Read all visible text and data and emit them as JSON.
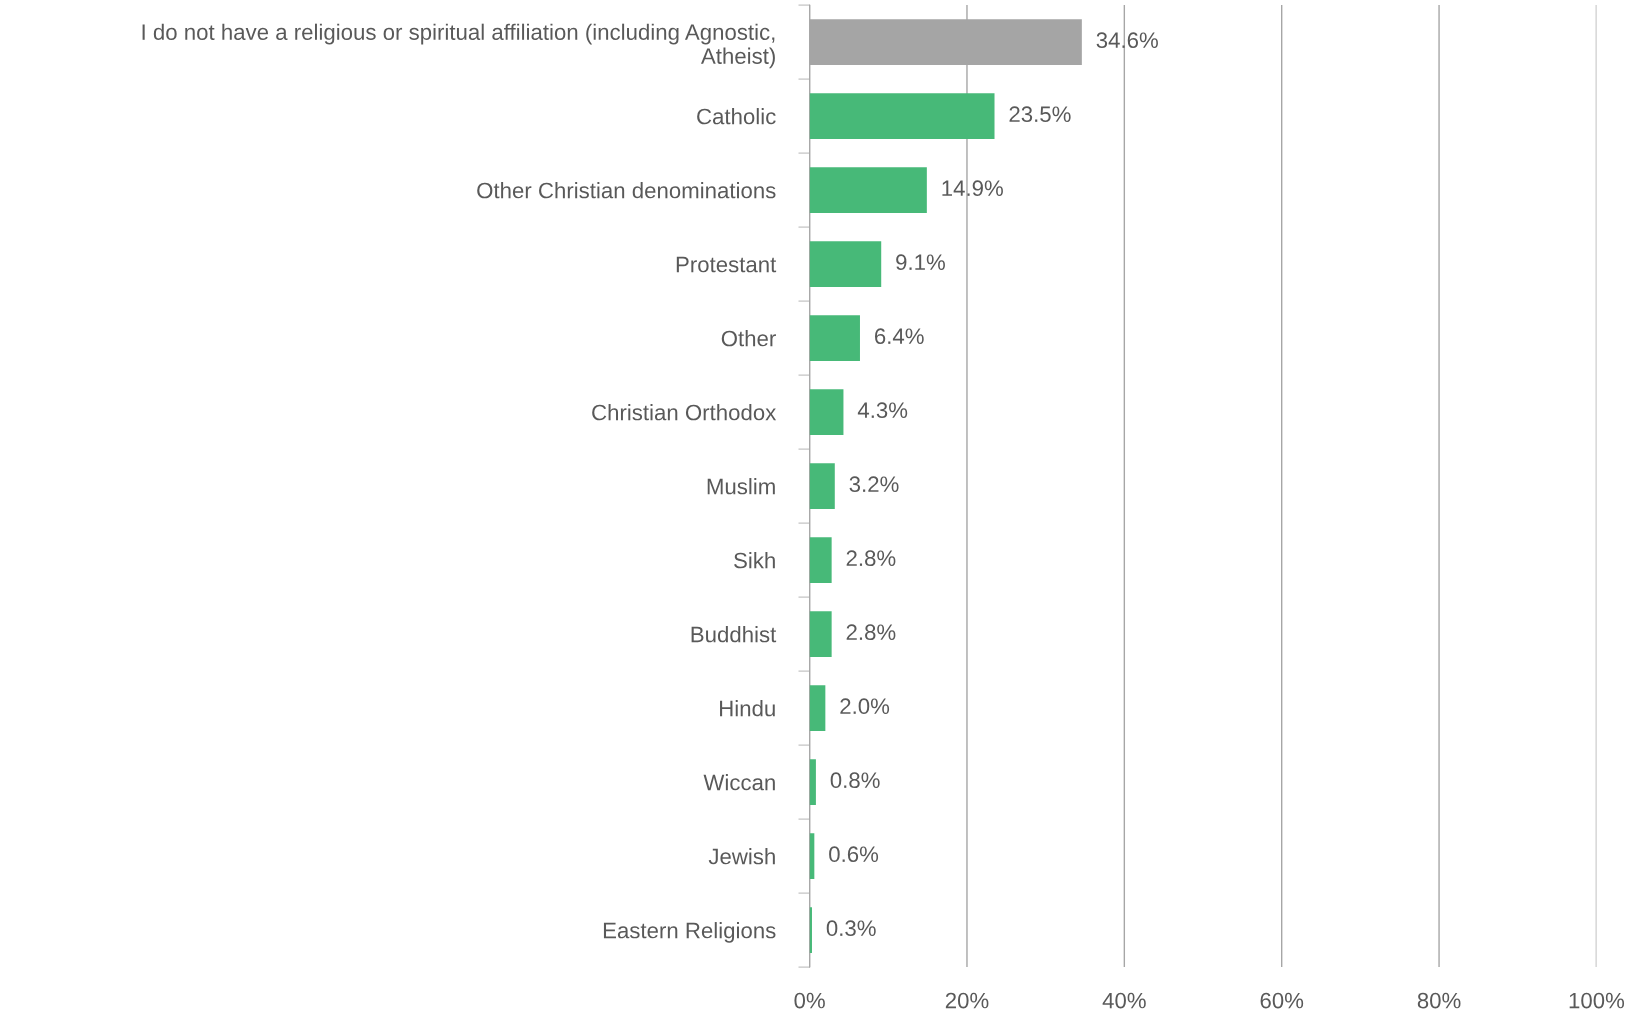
{
  "chart_data": {
    "type": "bar",
    "orientation": "horizontal",
    "categories": [
      "I do not have a religious or spiritual affiliation (including Agnostic, Atheist)",
      "Catholic",
      "Other Christian denominations",
      "Protestant",
      "Other",
      "Christian Orthodox",
      "Muslim",
      "Sikh",
      "Buddhist",
      "Hindu",
      "Wiccan",
      "Jewish",
      "Eastern Religions"
    ],
    "values": [
      34.6,
      23.5,
      14.9,
      9.1,
      6.4,
      4.3,
      3.2,
      2.8,
      2.8,
      2.0,
      0.8,
      0.6,
      0.3
    ],
    "colors": [
      "#a5a5a5",
      "#47b978",
      "#47b978",
      "#47b978",
      "#47b978",
      "#47b978",
      "#47b978",
      "#47b978",
      "#47b978",
      "#47b978",
      "#47b978",
      "#47b978",
      "#47b978"
    ],
    "value_labels": [
      "34.6%",
      "23.5%",
      "14.9%",
      "9.1%",
      "6.4%",
      "4.3%",
      "3.2%",
      "2.8%",
      "2.8%",
      "2.0%",
      "0.8%",
      "0.6%",
      "0.3%"
    ],
    "xlim": [
      0,
      100
    ],
    "xticks": [
      {
        "value": 0,
        "label": "0%"
      },
      {
        "value": 20,
        "label": "20%"
      },
      {
        "value": 40,
        "label": "40%"
      },
      {
        "value": 60,
        "label": "60%"
      },
      {
        "value": 80,
        "label": "80%"
      },
      {
        "value": 100,
        "label": "100%"
      }
    ],
    "grid": "x"
  }
}
